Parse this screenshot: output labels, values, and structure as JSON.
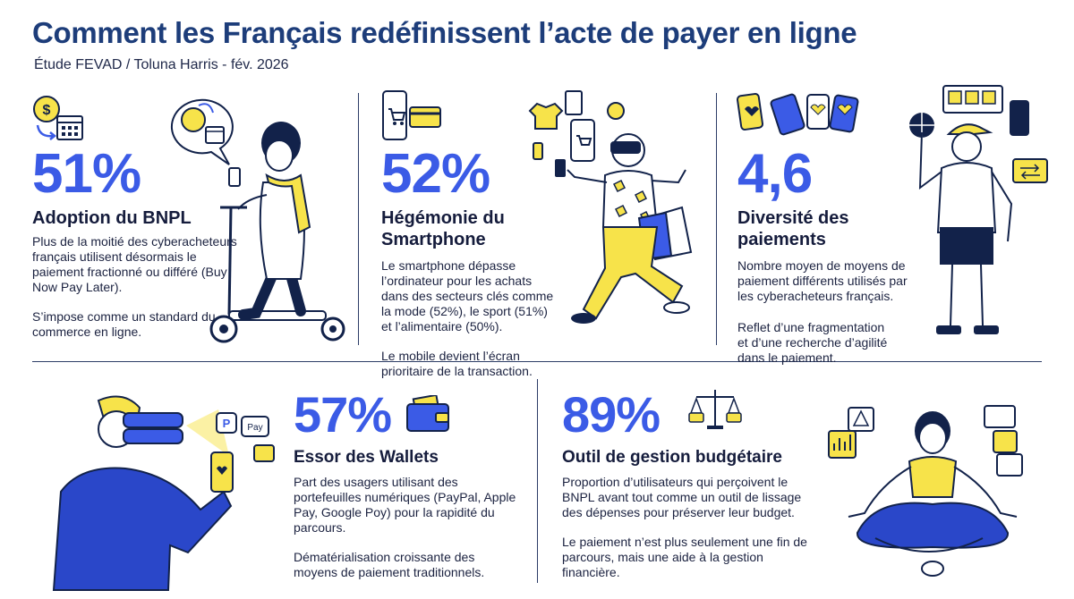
{
  "header": {
    "title": "Comment les Français redéfinissent l’acte de payer en ligne",
    "subtitle": "Étude FEVAD / Toluna Harris - fév. 2026"
  },
  "colors": {
    "accent": "#3b5be6",
    "yellow": "#f7e34a",
    "navy": "#12224a",
    "title": "#1d3d7a"
  },
  "panels": [
    {
      "stat": "51%",
      "heading": "Adoption du BNPL",
      "text1": "Plus de la moitié des cyberacheteurs français utilisent désormais le paiement fractionné ou différé (Buy Now Pay Later).",
      "text2": "S’impose comme un standard du commerce en ligne.",
      "icons": [
        "dollar-coin-icon",
        "calendar-icon",
        "scooter-illustration"
      ]
    },
    {
      "stat": "52%",
      "heading": "Hégémonie du Smartphone",
      "text1": "Le smartphone dépasse l’ordinateur pour les achats dans des secteurs clés comme la mode (52%), le sport (51%) et l’alimentaire (50%).",
      "text2": "Le mobile devient l’écran prioritaire de la transaction.",
      "icons": [
        "smartphone-cart-icon",
        "credit-card-icon",
        "shopper-illustration"
      ]
    },
    {
      "stat": "4,6",
      "heading": "Diversité des paiements",
      "text1": "Nombre moyen de moyens de paiement différents utilisés par les cyberacheteurs français.",
      "text2": "Reflet d’une fragmentation et d’une recherche d’agilité dans le paiement.",
      "icons": [
        "payment-cards-icon",
        "basketball-player-illustration"
      ]
    },
    {
      "stat": "57%",
      "heading": "Essor des Wallets",
      "text1": "Part des usagers utilisant des portefeuilles numériques (PayPal, Apple Pay, Google Poy) pour la rapidité du parcours.",
      "text2": "Dématérialisation croissante des moyens de paiement traditionnels.",
      "icons": [
        "wallet-icon",
        "binoculars-illustration"
      ]
    },
    {
      "stat": "89%",
      "heading": "Outil de gestion budgétaire",
      "text1": "Proportion d’utilisateurs qui perçoivent le BNPL avant tout comme un outil de lissage des dépenses pour préserver leur budget.",
      "text2": "Le paiement n’est plus seulement une fin de parcours, mais une aide à la gestion financière.",
      "icons": [
        "balance-scale-icon",
        "meditation-illustration"
      ]
    }
  ],
  "wallet_badges": {
    "paypal": "P",
    "applepay": "Pay"
  }
}
